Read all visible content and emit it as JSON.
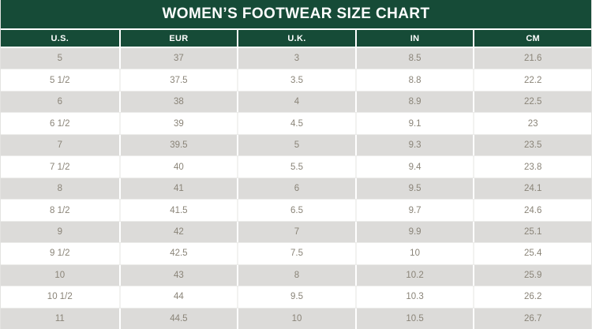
{
  "title": "WOMEN’S FOOTWEAR SIZE CHART",
  "colors": {
    "header_bg": "#164b37",
    "header_text": "#ffffff",
    "row_alt_bg": "#dcdbd9",
    "row_bg": "#ffffff",
    "cell_text": "#8a8478"
  },
  "chart_data": {
    "type": "table",
    "title": "WOMEN’S FOOTWEAR SIZE CHART",
    "columns": [
      "U.S.",
      "EUR",
      "U.K.",
      "IN",
      "CM"
    ],
    "rows": [
      [
        "5",
        "37",
        "3",
        "8.5",
        "21.6"
      ],
      [
        "5 1/2",
        "37.5",
        "3.5",
        "8.8",
        "22.2"
      ],
      [
        "6",
        "38",
        "4",
        "8.9",
        "22.5"
      ],
      [
        "6 1/2",
        "39",
        "4.5",
        "9.1",
        "23"
      ],
      [
        "7",
        "39.5",
        "5",
        "9.3",
        "23.5"
      ],
      [
        "7 1/2",
        "40",
        "5.5",
        "9.4",
        "23.8"
      ],
      [
        "8",
        "41",
        "6",
        "9.5",
        "24.1"
      ],
      [
        "8 1/2",
        "41.5",
        "6.5",
        "9.7",
        "24.6"
      ],
      [
        "9",
        "42",
        "7",
        "9.9",
        "25.1"
      ],
      [
        "9 1/2",
        "42.5",
        "7.5",
        "10",
        "25.4"
      ],
      [
        "10",
        "43",
        "8",
        "10.2",
        "25.9"
      ],
      [
        "10 1/2",
        "44",
        "9.5",
        "10.3",
        "26.2"
      ],
      [
        "11",
        "44.5",
        "10",
        "10.5",
        "26.7"
      ]
    ]
  }
}
